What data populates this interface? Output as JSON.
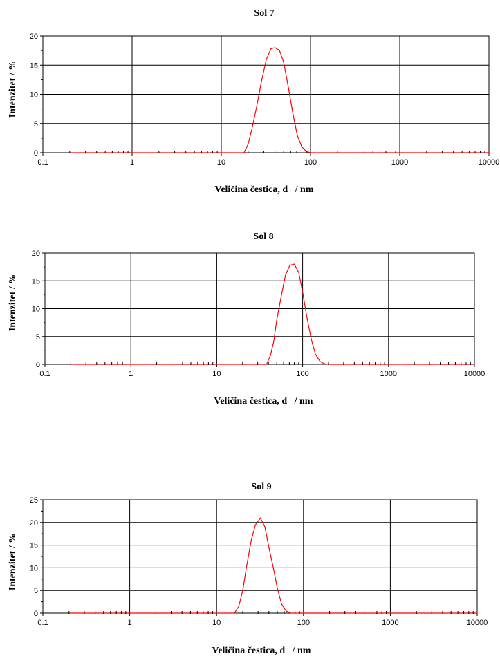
{
  "chart_data": [
    {
      "type": "line",
      "title": "Sol 7",
      "xlabel": "Veličina čestica, d   / nm",
      "ylabel": "Intenzitet / %",
      "xscale": "log",
      "xlim": [
        0.1,
        10000
      ],
      "ylim": [
        0,
        20
      ],
      "xticks": [
        0.1,
        1,
        10,
        100,
        1000,
        10000
      ],
      "xtick_labels": [
        "0.1",
        "1",
        "10",
        "100",
        "1000",
        "10000"
      ],
      "yticks": [
        0,
        5,
        10,
        15,
        20
      ],
      "ytick_labels": [
        "0",
        "5",
        "10",
        "15",
        "20"
      ],
      "grid": true,
      "series_color": "#ff0000",
      "marker_x": [
        0.2,
        0.3,
        0.4,
        0.5,
        0.6,
        0.7,
        0.8,
        0.9,
        2,
        3,
        4,
        5,
        6,
        7,
        8,
        9,
        20,
        30,
        40,
        50,
        60,
        70,
        80,
        90,
        200,
        300,
        400,
        500,
        600,
        700,
        800,
        900,
        2000,
        3000,
        4000,
        5000,
        6000,
        7000,
        8000,
        9000
      ],
      "series": [
        {
          "x": [
            0.2,
            18,
            20,
            22,
            25,
            28,
            32,
            36,
            40,
            45,
            50,
            56,
            63,
            71,
            80,
            90,
            100,
            10000
          ],
          "y": [
            0,
            0,
            1.5,
            4,
            8,
            12,
            16,
            17.8,
            18,
            17.5,
            15.5,
            11.5,
            7,
            3,
            1,
            0.2,
            0,
            0
          ]
        }
      ]
    },
    {
      "type": "line",
      "title": "Sol 8",
      "xlabel": "Veličina čestica, d   / nm",
      "ylabel": "Intenzitet / %",
      "xscale": "log",
      "xlim": [
        0.1,
        10000
      ],
      "ylim": [
        0,
        20
      ],
      "xticks": [
        0.1,
        1,
        10,
        100,
        1000,
        10000
      ],
      "xtick_labels": [
        "0.1",
        "1",
        "10",
        "100",
        "1000",
        "10000"
      ],
      "yticks": [
        0,
        5,
        10,
        15,
        20
      ],
      "ytick_labels": [
        "0",
        "5",
        "10",
        "15",
        "20"
      ],
      "grid": true,
      "series_color": "#ff0000",
      "marker_x": [
        0.2,
        0.3,
        0.4,
        0.5,
        0.6,
        0.7,
        0.8,
        0.9,
        2,
        3,
        4,
        5,
        6,
        7,
        8,
        9,
        20,
        30,
        40,
        50,
        60,
        70,
        80,
        90,
        200,
        300,
        400,
        500,
        600,
        700,
        800,
        900,
        2000,
        3000,
        4000,
        5000,
        6000,
        7000,
        8000,
        9000
      ],
      "series": [
        {
          "x": [
            0.2,
            38,
            42,
            46,
            50,
            56,
            63,
            71,
            80,
            90,
            100,
            112,
            126,
            141,
            160,
            180,
            200,
            10000
          ],
          "y": [
            0,
            0,
            1.5,
            4,
            8,
            12,
            16,
            17.8,
            18,
            16.5,
            13,
            8.5,
            4.5,
            1.8,
            0.5,
            0.1,
            0,
            0
          ]
        }
      ]
    },
    {
      "type": "line",
      "title": "Sol 9",
      "xlabel": "Veličina čestica, d   / nm",
      "ylabel": "Intenzitet / %",
      "xscale": "log",
      "xlim": [
        0.1,
        10000
      ],
      "ylim": [
        0,
        25
      ],
      "xticks": [
        0.1,
        1,
        10,
        100,
        1000,
        10000
      ],
      "xtick_labels": [
        "0.1",
        "1",
        "10",
        "100",
        "1000",
        "10000"
      ],
      "yticks": [
        0,
        5,
        10,
        15,
        20,
        25
      ],
      "ytick_labels": [
        "0",
        "5",
        "10",
        "15",
        "20",
        "25"
      ],
      "grid": true,
      "series_color": "#ff0000",
      "marker_x": [
        0.2,
        0.3,
        0.4,
        0.5,
        0.6,
        0.7,
        0.8,
        0.9,
        2,
        3,
        4,
        5,
        6,
        7,
        8,
        9,
        20,
        30,
        40,
        50,
        60,
        70,
        80,
        90,
        200,
        300,
        400,
        500,
        600,
        700,
        800,
        900,
        2000,
        3000,
        4000,
        5000,
        6000,
        7000,
        8000,
        9000
      ],
      "series": [
        {
          "x": [
            0.2,
            16,
            18,
            20,
            22,
            25,
            28,
            32,
            36,
            40,
            45,
            50,
            56,
            63,
            71,
            10000
          ],
          "y": [
            0,
            0,
            1.5,
            5,
            10,
            16,
            19.5,
            21,
            19,
            14.5,
            10,
            5.5,
            2,
            0.5,
            0,
            0
          ]
        }
      ]
    }
  ]
}
